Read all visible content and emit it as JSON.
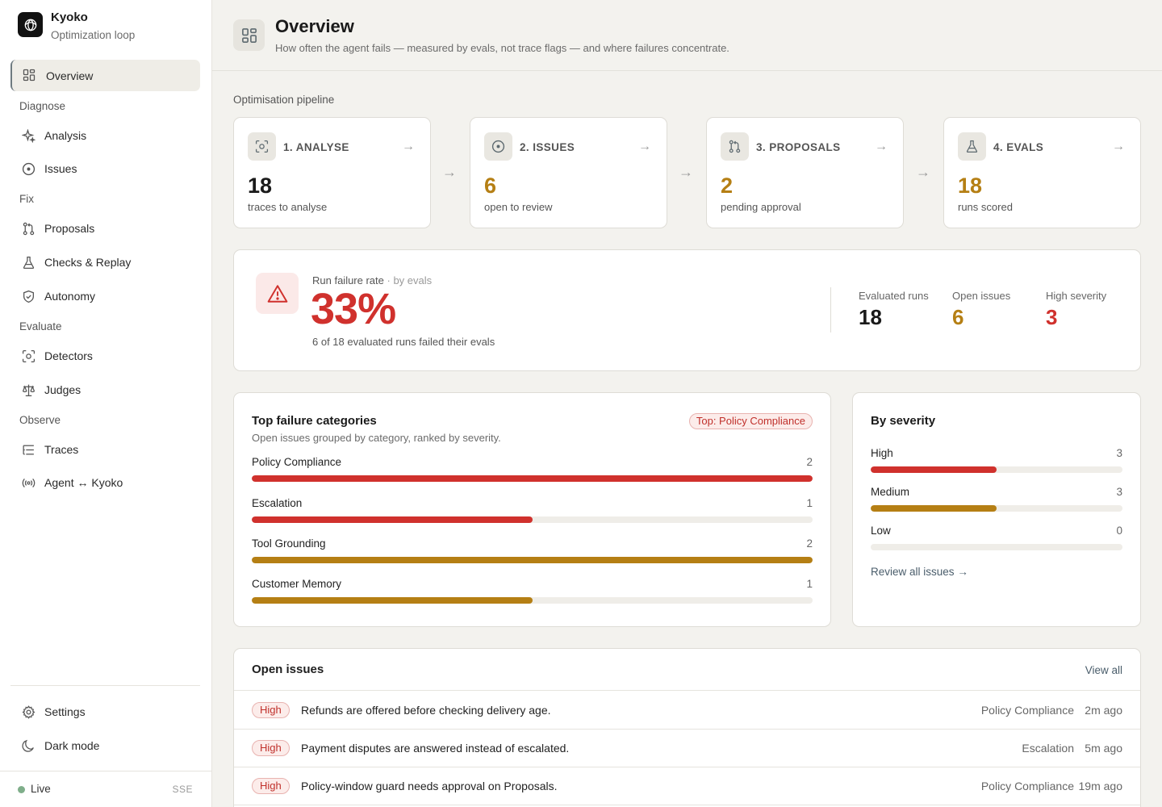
{
  "app": {
    "name": "Kyoko",
    "subtitle": "Optimization loop"
  },
  "nav": {
    "active": {
      "label": "Overview",
      "icon": "grid-icon"
    },
    "sections": [
      {
        "title": "Diagnose",
        "items": [
          {
            "label": "Analysis",
            "icon": "sparkle-icon"
          },
          {
            "label": "Issues",
            "icon": "target-icon"
          }
        ]
      },
      {
        "title": "Fix",
        "items": [
          {
            "label": "Proposals",
            "icon": "git-pull-icon"
          },
          {
            "label": "Checks & Replay",
            "icon": "flask-icon"
          },
          {
            "label": "Autonomy",
            "icon": "shield-icon"
          }
        ]
      },
      {
        "title": "Evaluate",
        "items": [
          {
            "label": "Detectors",
            "icon": "scan-icon"
          },
          {
            "label": "Judges",
            "icon": "scale-icon"
          }
        ]
      },
      {
        "title": "Observe",
        "items": [
          {
            "label": "Traces",
            "icon": "list-tree-icon"
          },
          {
            "label": "Agent ↔ Kyoko",
            "icon": "broadcast-icon"
          }
        ]
      }
    ],
    "footer": [
      {
        "label": "Settings",
        "icon": "gear-icon"
      },
      {
        "label": "Dark mode",
        "icon": "moon-icon"
      }
    ],
    "status": {
      "live": "Live",
      "transport": "SSE"
    }
  },
  "header": {
    "title": "Overview",
    "subtitle": "How often the agent fails — measured by evals, not trace flags — and where failures concentrate."
  },
  "pipeline": {
    "label": "Optimisation pipeline",
    "stages": [
      {
        "title": "1. ANALYSE",
        "value": "18",
        "caption": "traces to analyse",
        "color": "#1a1a1a"
      },
      {
        "title": "2. ISSUES",
        "value": "6",
        "caption": "open to review",
        "color": "#b57f14"
      },
      {
        "title": "3. PROPOSALS",
        "value": "2",
        "caption": "pending approval",
        "color": "#b57f14"
      },
      {
        "title": "4. EVALS",
        "value": "18",
        "caption": "runs scored",
        "color": "#b57f14"
      }
    ]
  },
  "failure_rate": {
    "label": "Run failure rate",
    "label_suffix": "· by evals",
    "value": "33%",
    "caption": "6 of 18 evaluated runs failed their evals",
    "stats": [
      {
        "label": "Evaluated runs",
        "value": "18",
        "color": "#1a1a1a"
      },
      {
        "label": "Open issues",
        "value": "6",
        "color": "#b57f14"
      },
      {
        "label": "High severity",
        "value": "3",
        "color": "#d0312d"
      }
    ]
  },
  "categories": {
    "title": "Top failure categories",
    "subtitle": "Open issues grouped by category, ranked by severity.",
    "badge": "Top: Policy Compliance",
    "rows": [
      {
        "label": "Policy Compliance",
        "count": "2",
        "fraction": 1.0,
        "color": "#d0312d"
      },
      {
        "label": "Escalation",
        "count": "1",
        "fraction": 0.5,
        "color": "#d0312d"
      },
      {
        "label": "Tool Grounding",
        "count": "2",
        "fraction": 1.0,
        "color": "#b57f14"
      },
      {
        "label": "Customer Memory",
        "count": "1",
        "fraction": 0.5,
        "color": "#b57f14"
      }
    ]
  },
  "severity": {
    "title": "By severity",
    "rows": [
      {
        "label": "High",
        "count": "3",
        "fraction": 0.5,
        "color": "#d0312d"
      },
      {
        "label": "Medium",
        "count": "3",
        "fraction": 0.5,
        "color": "#b57f14"
      },
      {
        "label": "Low",
        "count": "0",
        "fraction": 0,
        "color": "#b57f14"
      }
    ],
    "link": "Review all issues"
  },
  "issues": {
    "title": "Open issues",
    "view_all": "View all",
    "rows": [
      {
        "severity": "High",
        "text": "Refunds are offered before checking delivery age.",
        "category": "Policy Compliance",
        "time": "2m ago"
      },
      {
        "severity": "High",
        "text": "Payment disputes are answered instead of escalated.",
        "category": "Escalation",
        "time": "5m ago"
      },
      {
        "severity": "High",
        "text": "Policy-window guard needs approval on Proposals.",
        "category": "Policy Compliance",
        "time": "19m ago"
      }
    ]
  }
}
